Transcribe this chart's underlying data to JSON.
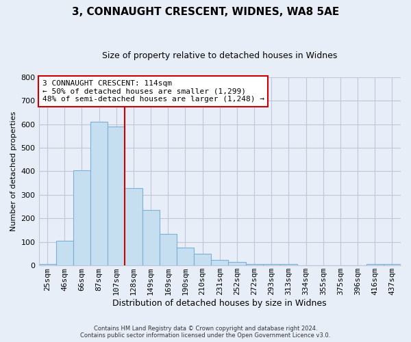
{
  "title": "3, CONNAUGHT CRESCENT, WIDNES, WA8 5AE",
  "subtitle": "Size of property relative to detached houses in Widnes",
  "xlabel": "Distribution of detached houses by size in Widnes",
  "ylabel": "Number of detached properties",
  "bar_labels": [
    "25sqm",
    "46sqm",
    "66sqm",
    "87sqm",
    "107sqm",
    "128sqm",
    "149sqm",
    "169sqm",
    "190sqm",
    "210sqm",
    "231sqm",
    "252sqm",
    "272sqm",
    "293sqm",
    "313sqm",
    "334sqm",
    "355sqm",
    "375sqm",
    "396sqm",
    "416sqm",
    "437sqm"
  ],
  "bar_values": [
    5,
    105,
    405,
    610,
    590,
    330,
    237,
    135,
    76,
    49,
    25,
    15,
    5,
    5,
    5,
    0,
    0,
    0,
    0,
    7,
    5
  ],
  "bar_color": "#c5dff0",
  "bar_edge_color": "#7ab0d4",
  "vline_x": 4.5,
  "vline_color": "#cc0000",
  "ylim": [
    0,
    800
  ],
  "yticks": [
    0,
    100,
    200,
    300,
    400,
    500,
    600,
    700,
    800
  ],
  "annotation_text": "3 CONNAUGHT CRESCENT: 114sqm\n← 50% of detached houses are smaller (1,299)\n48% of semi-detached houses are larger (1,248) →",
  "annotation_box_facecolor": "#ffffff",
  "annotation_box_edgecolor": "#cc0000",
  "footer_line1": "Contains HM Land Registry data © Crown copyright and database right 2024.",
  "footer_line2": "Contains public sector information licensed under the Open Government Licence v3.0.",
  "background_color": "#e8eef8",
  "plot_bg_color": "#e8eef8",
  "grid_color": "#c0c8d8",
  "title_fontsize": 11,
  "subtitle_fontsize": 9,
  "xlabel_fontsize": 9,
  "ylabel_fontsize": 8,
  "tick_fontsize": 8,
  "annot_fontsize": 8,
  "footer_fontsize": 6
}
